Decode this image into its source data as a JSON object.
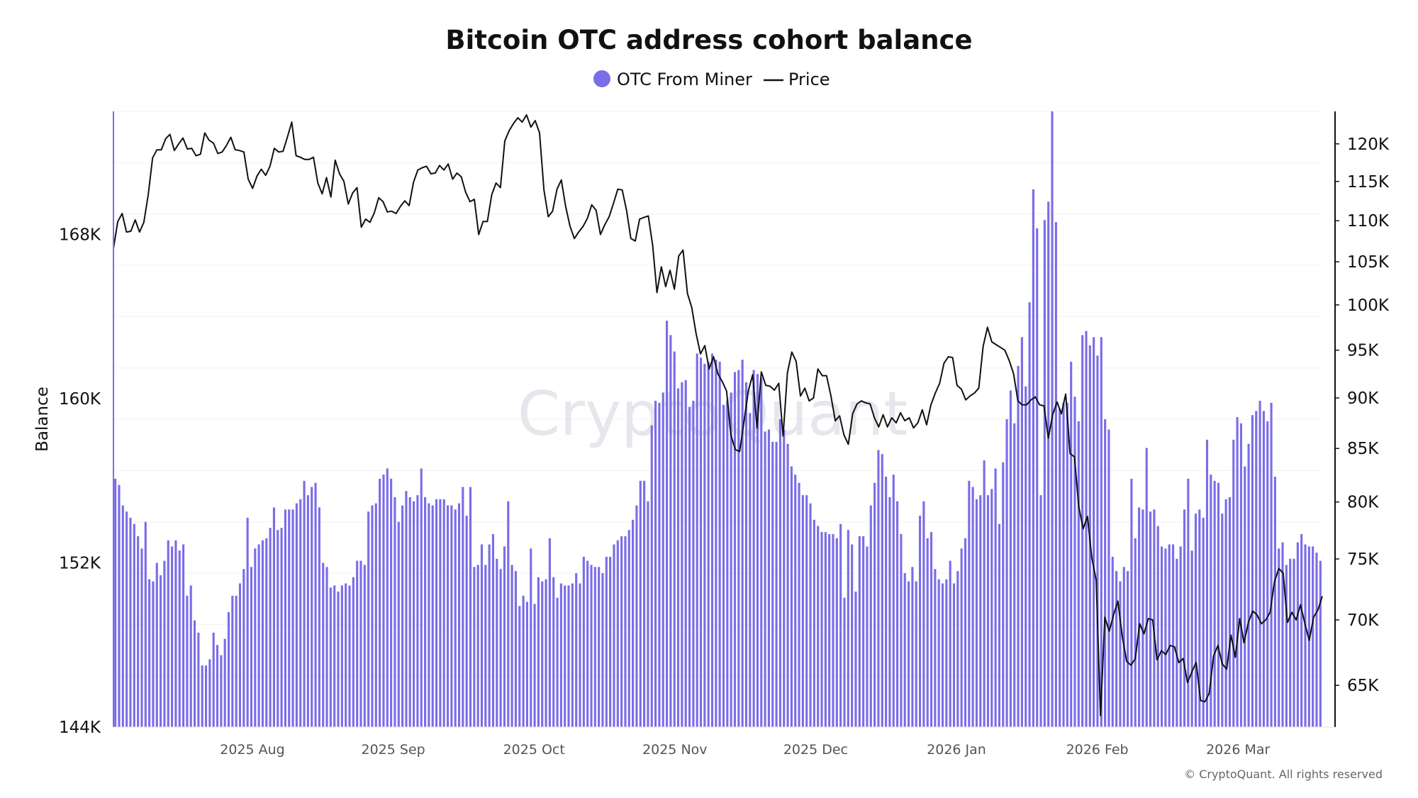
{
  "chart_data": {
    "type": "bar",
    "title": "Bitcoin OTC address cohort balance",
    "watermark": "CryptoQuant",
    "copyright": "© CryptoQuant. All rights reserved",
    "ylabel": "Balance",
    "y_left": {
      "ticks": [
        "168K",
        "160K",
        "152K",
        "144K"
      ],
      "ylim": [
        144000,
        174000
      ]
    },
    "y_right": {
      "ticks": [
        "120K",
        "115K",
        "110K",
        "105K",
        "100K",
        "95K",
        "90K",
        "85K",
        "80K",
        "75K",
        "70K",
        "65K"
      ],
      "ylim": [
        62000,
        124500
      ],
      "scale": "log"
    },
    "x_ticks": [
      "2025 Aug",
      "2025 Sep",
      "2025 Oct",
      "2025 Nov",
      "2025 Dec",
      "2026 Jan",
      "2026 Feb",
      "2026 Mar"
    ],
    "legend": [
      {
        "name": "OTC From Miner",
        "color": "#7b6ce8",
        "marker": "circle"
      },
      {
        "name": "Price",
        "color": "#111111",
        "marker": "line"
      }
    ],
    "series": [
      {
        "name": "OTC From Miner",
        "type": "bar",
        "axis": "left",
        "color": "#7b6ce8",
        "values": [
          156100,
          155800,
          154800,
          154500,
          154200,
          153900,
          153300,
          152700,
          154000,
          151200,
          151100,
          152000,
          151400,
          152100,
          153100,
          152800,
          153100,
          152600,
          152900,
          150400,
          150900,
          149200,
          148600,
          147000,
          147000,
          147300,
          148600,
          148000,
          147500,
          148300,
          149600,
          150400,
          150400,
          151000,
          151700,
          154200,
          151800,
          152700,
          152900,
          153100,
          153200,
          153700,
          154700,
          153600,
          153700,
          154600,
          154600,
          154600,
          154900,
          155100,
          156000,
          155300,
          155700,
          155900,
          154700,
          152000,
          151800,
          150800,
          150900,
          150600,
          150900,
          151000,
          150900,
          151300,
          152100,
          152100,
          151900,
          154500,
          154800,
          154900,
          156100,
          156300,
          156600,
          156100,
          155200,
          154000,
          154800,
          155500,
          155200,
          155000,
          155300,
          156600,
          155200,
          154900,
          154800,
          155100,
          155100,
          155100,
          154800,
          154800,
          154600,
          154900,
          155700,
          154300,
          155700,
          151800,
          151900,
          152900,
          151900,
          152900,
          153400,
          152200,
          151700,
          152800,
          155000,
          151900,
          151600,
          149900,
          150400,
          150100,
          152700,
          150000,
          151300,
          151100,
          151200,
          153200,
          151300,
          150300,
          151000,
          150900,
          150900,
          151000,
          151500,
          151000,
          152300,
          152100,
          151900,
          151800,
          151800,
          151500,
          152300,
          152300,
          152900,
          153100,
          153300,
          153300,
          153600,
          154100,
          154800,
          156000,
          156000,
          155000,
          158700,
          159900,
          159800,
          160300,
          163800,
          163100,
          162300,
          160500,
          160800,
          160900,
          159600,
          159900,
          162200,
          162000,
          161700,
          161800,
          162200,
          161900,
          161800,
          159700,
          159900,
          160300,
          161300,
          161400,
          161900,
          160800,
          159300,
          161400,
          161200,
          161000,
          158400,
          158500,
          157900,
          157900,
          159000,
          158500,
          157800,
          156700,
          156300,
          155900,
          155300,
          155300,
          154900,
          154100,
          153800,
          153500,
          153500,
          153400,
          153400,
          153200,
          153900,
          150300,
          153600,
          152900,
          150600,
          153300,
          153300,
          152800,
          154800,
          155900,
          157500,
          157300,
          156200,
          155200,
          156300,
          155000,
          153400,
          151500,
          151100,
          151800,
          151100,
          154300,
          155000,
          153200,
          153500,
          151700,
          151200,
          151000,
          151200,
          152100,
          151000,
          151600,
          152700,
          153200,
          156000,
          155700,
          155100,
          155300,
          157000,
          155300,
          155600,
          156600,
          153900,
          156900,
          159000,
          160400,
          158800,
          161600,
          163000,
          160600,
          164700,
          170200,
          168300,
          155300,
          168700,
          169600,
          174000,
          168600,
          159500,
          159800,
          159800,
          161800,
          160100,
          158900,
          163100,
          163300,
          162600,
          163000,
          162100,
          163000,
          159000,
          158500,
          152300,
          151600,
          151100,
          151800,
          151600,
          156100,
          153200,
          154700,
          154600,
          157600,
          154500,
          154600,
          153800,
          152800,
          152700,
          152900,
          152900,
          152200,
          152800,
          154600,
          156100,
          152600,
          154400,
          154600,
          154200,
          158000,
          156300,
          156000,
          155900,
          154400,
          155100,
          155200,
          158000,
          159100,
          158800,
          156700,
          157800,
          159200,
          159400,
          159900,
          159400,
          158900,
          159800,
          156200,
          152700,
          153000,
          151900,
          152200,
          152200,
          153000,
          153400,
          152900,
          152800,
          152800,
          152500,
          152100
        ]
      },
      {
        "name": "Price",
        "type": "line",
        "axis": "right",
        "color": "#111111",
        "values": [
          106600,
          109900,
          110900,
          108600,
          108700,
          110100,
          108600,
          109800,
          113300,
          118100,
          119200,
          119200,
          120700,
          121300,
          119100,
          120000,
          120800,
          119300,
          119400,
          118400,
          118600,
          121500,
          120500,
          120100,
          118700,
          118900,
          119800,
          120900,
          119200,
          119100,
          118900,
          115300,
          114100,
          115700,
          116600,
          115800,
          117000,
          119400,
          118900,
          119000,
          120900,
          123000,
          118400,
          118200,
          117900,
          117900,
          118200,
          114800,
          113400,
          115500,
          113000,
          117800,
          116000,
          115000,
          112100,
          113500,
          114200,
          109200,
          110200,
          109800,
          111000,
          112900,
          112400,
          111100,
          111200,
          110900,
          111800,
          112500,
          111900,
          114900,
          116500,
          116800,
          117000,
          116000,
          116100,
          117100,
          116500,
          117300,
          115300,
          116100,
          115600,
          113600,
          112400,
          112700,
          108300,
          109900,
          109900,
          113300,
          114800,
          114200,
          120400,
          121800,
          122800,
          123600,
          123000,
          124000,
          122300,
          123200,
          121500,
          113900,
          110500,
          111200,
          114000,
          115200,
          111800,
          109300,
          107800,
          108600,
          109300,
          110300,
          112000,
          111300,
          108300,
          109500,
          110500,
          112200,
          114000,
          113900,
          111300,
          107800,
          107500,
          110200,
          110400,
          110600,
          107000,
          101400,
          104400,
          102100,
          104000,
          101800,
          105700,
          106400,
          101300,
          99700,
          96800,
          94600,
          95500,
          93000,
          94300,
          92500,
          91700,
          90700,
          86300,
          84900,
          84700,
          87600,
          90700,
          92400,
          87000,
          92700,
          91300,
          91200,
          90800,
          91500,
          86200,
          92600,
          94800,
          93800,
          90200,
          91000,
          89700,
          90000,
          93000,
          92300,
          92300,
          90200,
          87700,
          88200,
          86300,
          85400,
          88400,
          89400,
          89700,
          89500,
          89400,
          88000,
          87100,
          88300,
          87100,
          88000,
          87500,
          88500,
          87700,
          88000,
          87000,
          87500,
          88800,
          87300,
          89300,
          90500,
          91500,
          93600,
          94300,
          94200,
          91300,
          90900,
          89800,
          90200,
          90500,
          91000,
          95400,
          97500,
          95900,
          95600,
          95300,
          95000,
          93900,
          92500,
          89700,
          89300,
          89300,
          89800,
          90100,
          89300,
          89200,
          86000,
          88300,
          89600,
          88400,
          90400,
          84500,
          84200,
          79600,
          77600,
          78700,
          75100,
          73200,
          62800,
          70200,
          69100,
          70400,
          71500,
          68700,
          66800,
          66500,
          67000,
          69700,
          68900,
          70100,
          70000,
          66900,
          67600,
          67300,
          68000,
          67900,
          66700,
          67000,
          65200,
          66000,
          66700,
          63900,
          63800,
          64400,
          67200,
          68000,
          66600,
          66200,
          68800,
          67100,
          70100,
          68200,
          69800,
          70700,
          70400,
          69700,
          70000,
          70600,
          73100,
          74200,
          73800,
          69800,
          70600,
          70000,
          71200,
          69700,
          68400,
          70200,
          70800,
          71900
        ]
      }
    ]
  }
}
